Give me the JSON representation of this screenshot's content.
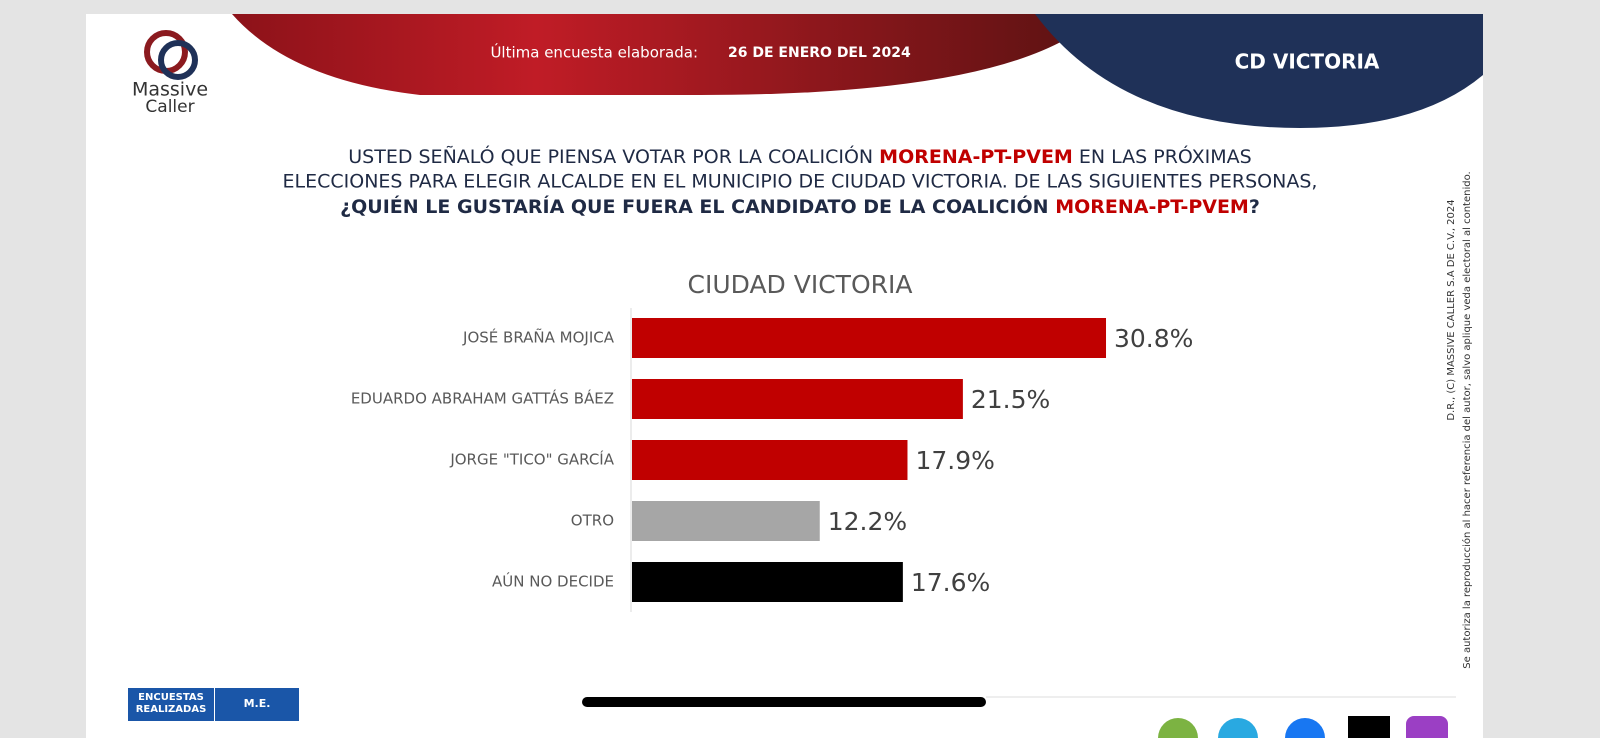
{
  "header": {
    "logo_top": "Massive",
    "logo_bottom": "Caller",
    "survey_label": "Última encuesta elaborada:",
    "survey_date": "26 DE ENERO DEL 2024",
    "region": "CD VICTORIA"
  },
  "question": {
    "line1_start": "USTED SEÑALÓ QUE PIENSA VOTAR POR LA COALICIÓN",
    "line1_party": "MORENA-PT-PVEM",
    "line1_end": "EN LAS PRÓXIMAS",
    "line2": "ELECCIONES PARA ELEGIR ALCALDE EN EL MUNICIPIO DE CIUDAD VICTORIA. DE LAS SIGUIENTES PERSONAS,",
    "line3_start": "¿QUIÉN LE GUSTARÍA QUE FUERA EL CANDIDATO DE LA COALICIÓN",
    "line3_party": "MORENA-PT-PVEM",
    "line3_end": "?"
  },
  "chart_data": {
    "type": "hbar",
    "title": "CIUDAD VICTORIA",
    "categories": [
      "JOSÉ BRAÑA MOJICA",
      "EDUARDO ABRAHAM GATTÁS BÁEZ",
      "JORGE \"TICO\" GARCÍA",
      "OTRO",
      "AÚN NO DECIDE"
    ],
    "values": [
      30.8,
      21.5,
      17.9,
      12.2,
      17.6
    ],
    "value_labels": [
      "30.8%",
      "21.5%",
      "17.9%",
      "12.2%",
      "17.6%"
    ],
    "colors": [
      "#c00000",
      "#c00000",
      "#c00000",
      "#a6a6a6",
      "#000000"
    ]
  },
  "side_note": {
    "line1": "D.R., (C) MASSIVE CALLER S.A DE C.V., 2024",
    "line2": "Se autoriza la reproducción al hacer referencia del autor, salvo aplique veda electoral al contenido."
  },
  "footer_table": {
    "headers": [
      "ENCUESTAS REALIZADAS",
      "M.E."
    ]
  }
}
